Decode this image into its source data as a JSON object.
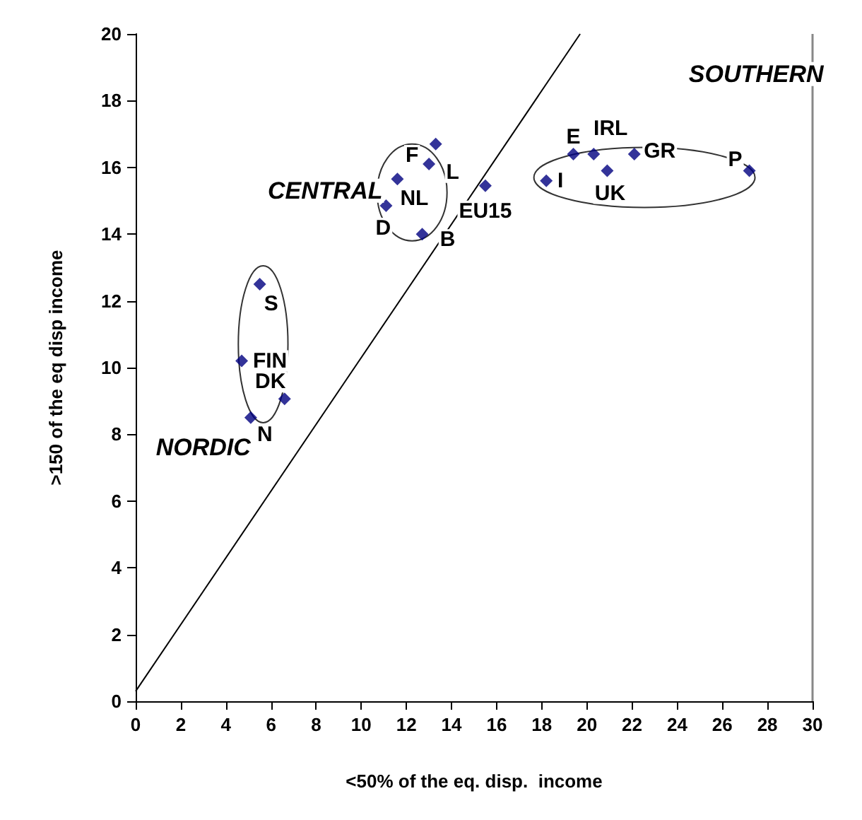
{
  "chart_data": {
    "type": "scatter",
    "xlabel": "<50% of the eq. disp.  income",
    "ylabel": ">150 of the eq disp income",
    "xlim": [
      0,
      30
    ],
    "xticks": [
      0,
      2,
      4,
      6,
      8,
      10,
      12,
      14,
      16,
      18,
      20,
      22,
      24,
      26,
      28,
      30
    ],
    "ylim": [
      0,
      20
    ],
    "yticks": [
      0,
      2,
      4,
      6,
      8,
      10,
      12,
      14,
      16,
      18,
      20
    ],
    "grid": false,
    "marker": "diamond",
    "series": [
      {
        "color": "#000080",
        "x": [
          5.5,
          4.7,
          6.6,
          5.1,
          12.7,
          11.1,
          11.6,
          13.0,
          13.3,
          15.5,
          18.2,
          19.4,
          20.3,
          20.9,
          22.1,
          27.2
        ],
        "values": [
          12.5,
          10.2,
          9.06,
          8.5,
          14.0,
          14.85,
          15.65,
          16.1,
          16.7,
          15.45,
          15.6,
          16.4,
          16.4,
          15.9,
          16.4,
          15.9
        ]
      },
      {
        "type": "line",
        "color": "#000000",
        "marker": "none",
        "x": [
          0,
          19.7
        ],
        "values": [
          0.3,
          20
        ]
      }
    ],
    "annotations": [
      {
        "text": "S",
        "x": 5.5,
        "y": 12.5
      },
      {
        "text": "FIN",
        "x": 4.7,
        "y": 10.2
      },
      {
        "text": "DK",
        "x": 6.6,
        "y": 9.06
      },
      {
        "text": "N",
        "x": 5.1,
        "y": 8.5
      },
      {
        "text": "B",
        "x": 12.7,
        "y": 14.0
      },
      {
        "text": "D",
        "x": 11.1,
        "y": 14.85
      },
      {
        "text": "NL",
        "x": 11.6,
        "y": 15.65
      },
      {
        "text": "F",
        "x": 13.0,
        "y": 16.1
      },
      {
        "text": "L",
        "x": 13.3,
        "y": 16.7
      },
      {
        "text": "EU15",
        "x": 15.5,
        "y": 15.45
      },
      {
        "text": "I",
        "x": 18.2,
        "y": 15.6
      },
      {
        "text": "E",
        "x": 19.4,
        "y": 16.4
      },
      {
        "text": "IRL",
        "x": 20.3,
        "y": 16.4
      },
      {
        "text": "UK",
        "x": 20.9,
        "y": 15.9
      },
      {
        "text": "GR",
        "x": 22.1,
        "y": 16.4
      },
      {
        "text": "P",
        "x": 27.2,
        "y": 15.9
      },
      "NORDIC",
      "CENTRAL",
      "SOUTHERN"
    ]
  }
}
